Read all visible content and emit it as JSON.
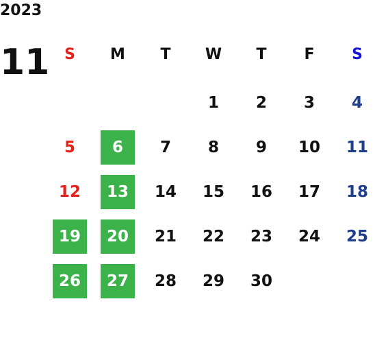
{
  "year": "2023",
  "month": "11",
  "weekdays": [
    "S",
    "M",
    "T",
    "W",
    "T",
    "F",
    "S"
  ],
  "weekday_colors": [
    "#e3221c",
    "#111111",
    "#111111",
    "#111111",
    "#111111",
    "#111111",
    "#1414d8"
  ],
  "day_colors": [
    "#e3221c",
    "#111111",
    "#111111",
    "#111111",
    "#111111",
    "#111111",
    "#1f3f8c"
  ],
  "marked_color": "#3bb34a",
  "weeks": [
    [
      null,
      null,
      null,
      {
        "day": "1"
      },
      {
        "day": "2"
      },
      {
        "day": "3"
      },
      {
        "day": "4"
      }
    ],
    [
      {
        "day": "5"
      },
      {
        "day": "6",
        "marked": true
      },
      {
        "day": "7"
      },
      {
        "day": "8"
      },
      {
        "day": "9"
      },
      {
        "day": "10"
      },
      {
        "day": "11"
      }
    ],
    [
      {
        "day": "12"
      },
      {
        "day": "13",
        "marked": true
      },
      {
        "day": "14"
      },
      {
        "day": "15"
      },
      {
        "day": "16"
      },
      {
        "day": "17"
      },
      {
        "day": "18"
      }
    ],
    [
      {
        "day": "19",
        "marked": true
      },
      {
        "day": "20",
        "marked": true
      },
      {
        "day": "21"
      },
      {
        "day": "22"
      },
      {
        "day": "23"
      },
      {
        "day": "24"
      },
      {
        "day": "25"
      }
    ],
    [
      {
        "day": "26",
        "marked": true
      },
      {
        "day": "27",
        "marked": true
      },
      {
        "day": "28"
      },
      {
        "day": "29"
      },
      {
        "day": "30"
      },
      null,
      null
    ]
  ]
}
